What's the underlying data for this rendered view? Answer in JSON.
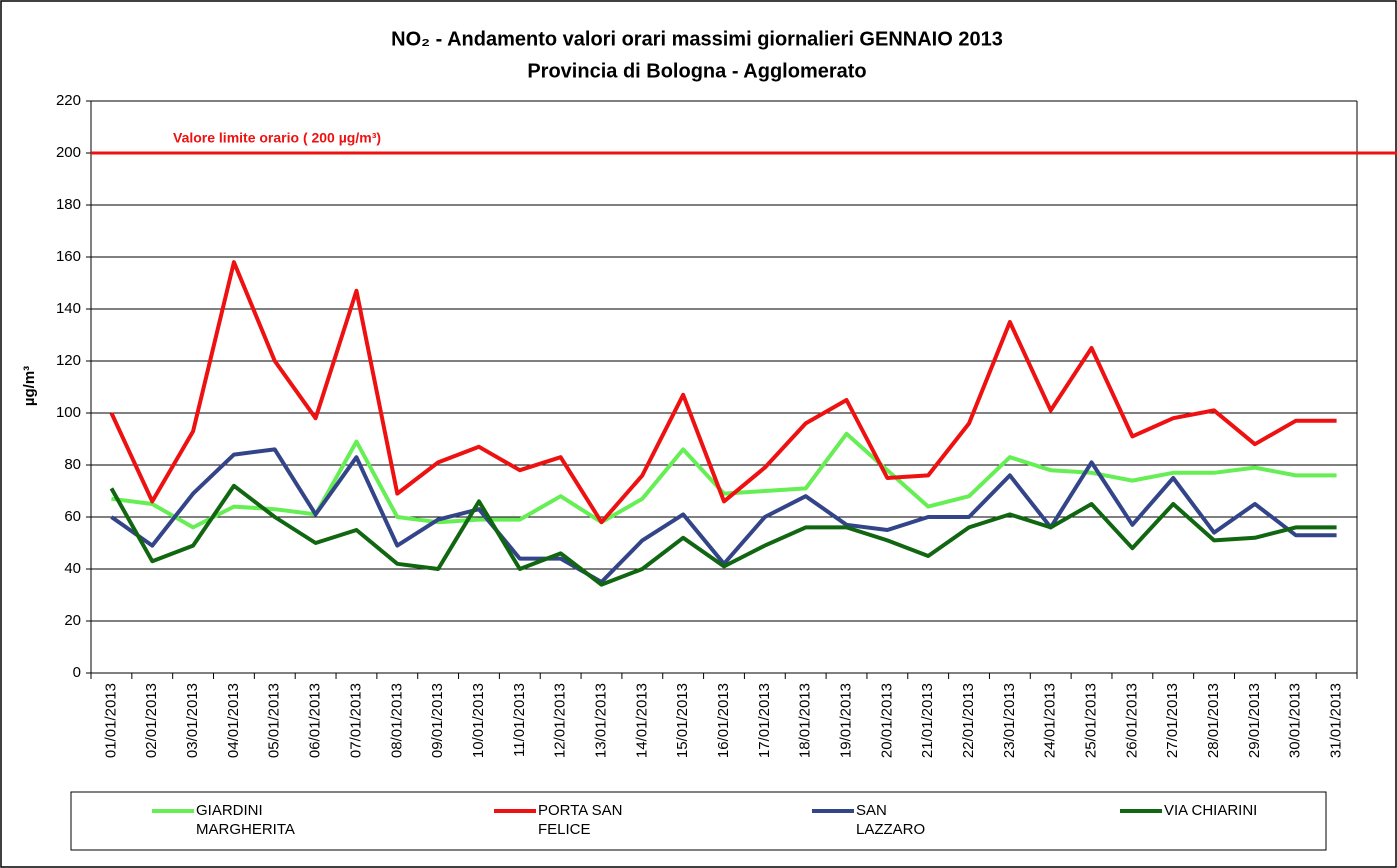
{
  "chart_data": {
    "type": "line",
    "title": "NO₂ - Andamento valori orari massimi giornalieri GENNAIO 2013",
    "subtitle": "Provincia di Bologna - Agglomerato",
    "y_label": "µg/m³",
    "categories": [
      "01/01/2013",
      "02/01/2013",
      "03/01/2013",
      "04/01/2013",
      "05/01/2013",
      "06/01/2013",
      "07/01/2013",
      "08/01/2013",
      "09/01/2013",
      "10/01/2013",
      "11/01/2013",
      "12/01/2013",
      "13/01/2013",
      "14/01/2013",
      "15/01/2013",
      "16/01/2013",
      "17/01/2013",
      "18/01/2013",
      "19/01/2013",
      "20/01/2013",
      "21/01/2013",
      "22/01/2013",
      "23/01/2013",
      "24/01/2013",
      "25/01/2013",
      "26/01/2013",
      "27/01/2013",
      "28/01/2013",
      "29/01/2013",
      "30/01/2013",
      "31/01/2013"
    ],
    "series": [
      {
        "name": "GIARDINI MARGHERITA",
        "color": "#66ee55",
        "values": [
          67,
          65,
          56,
          64,
          63,
          61,
          89,
          60,
          58,
          59,
          59,
          68,
          58,
          67,
          86,
          69,
          70,
          71,
          92,
          78,
          64,
          68,
          83,
          78,
          77,
          74,
          77,
          77,
          79,
          76,
          76
        ]
      },
      {
        "name": "PORTA SAN FELICE",
        "color": "#ee1111",
        "values": [
          100,
          66,
          93,
          158,
          120,
          98,
          147,
          69,
          81,
          87,
          78,
          83,
          58,
          76,
          107,
          66,
          79,
          96,
          105,
          75,
          76,
          96,
          135,
          101,
          125,
          91,
          98,
          101,
          88,
          97,
          97
        ]
      },
      {
        "name": "SAN LAZZARO",
        "color": "#334488",
        "values": [
          60,
          49,
          69,
          84,
          86,
          61,
          83,
          49,
          59,
          63,
          44,
          44,
          35,
          51,
          61,
          42,
          60,
          68,
          57,
          55,
          60,
          60,
          76,
          56,
          81,
          57,
          75,
          54,
          65,
          53,
          53
        ]
      },
      {
        "name": "VIA CHIARINI",
        "color": "#116611",
        "values": [
          71,
          43,
          49,
          72,
          60,
          50,
          55,
          42,
          40,
          66,
          40,
          46,
          34,
          40,
          52,
          41,
          49,
          56,
          56,
          51,
          45,
          56,
          61,
          56,
          65,
          48,
          65,
          51,
          52,
          56,
          56
        ]
      }
    ],
    "reference_line": {
      "value": 200,
      "label": "Valore limite orario ( 200 µg/m³)",
      "color": "#ee1111"
    },
    "ylim": [
      0,
      220
    ],
    "yticks": [
      0,
      20,
      40,
      60,
      80,
      100,
      120,
      140,
      160,
      180,
      200,
      220
    ],
    "grid": true,
    "legend": "bottom"
  }
}
